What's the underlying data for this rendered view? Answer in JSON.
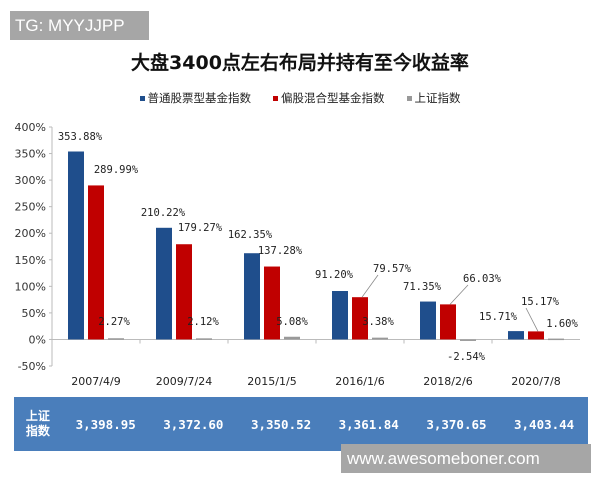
{
  "watermarks": {
    "top": "TG: MYYJJPP",
    "bottom": "www.awesomeboner.com"
  },
  "chart_data": {
    "type": "bar",
    "title": "大盘3400点左右布局并持有至今收益率",
    "categories": [
      "2007/4/9",
      "2009/7/24",
      "2015/1/5",
      "2016/1/6",
      "2018/2/6",
      "2020/7/8"
    ],
    "series": [
      {
        "name": "普通股票型基金指数",
        "color": "#1f4e8c",
        "values": [
          353.88,
          210.22,
          162.35,
          91.2,
          71.35,
          15.71
        ],
        "labels": [
          "353.88%",
          "210.22%",
          "162.35%",
          "91.20%",
          "71.35%",
          "15.71%"
        ]
      },
      {
        "name": "偏股混合型基金指数",
        "color": "#c00000",
        "values": [
          289.99,
          179.27,
          137.28,
          79.57,
          66.03,
          15.17
        ],
        "labels": [
          "289.99%",
          "179.27%",
          "137.28%",
          "79.57%",
          "66.03%",
          "15.17%"
        ]
      },
      {
        "name": "上证指数",
        "color": "#999999",
        "values": [
          2.27,
          2.12,
          5.08,
          3.38,
          -2.54,
          1.6
        ],
        "labels": [
          "2.27%",
          "2.12%",
          "5.08%",
          "3.38%",
          "-2.54%",
          "1.60%"
        ]
      }
    ],
    "ylim": [
      -50,
      400
    ],
    "yticks": [
      "-50%",
      "0%",
      "50%",
      "100%",
      "150%",
      "200%",
      "250%",
      "300%",
      "350%",
      "400%"
    ],
    "ytick_values": [
      -50,
      0,
      50,
      100,
      150,
      200,
      250,
      300,
      350,
      400
    ],
    "legend": "top",
    "grid": false,
    "table": {
      "header": "上证指数",
      "header_lines": [
        "上证",
        "指数"
      ],
      "values": [
        "3,398.95",
        "3,372.60",
        "3,350.52",
        "3,361.84",
        "3,370.65",
        "3,403.44"
      ]
    }
  }
}
